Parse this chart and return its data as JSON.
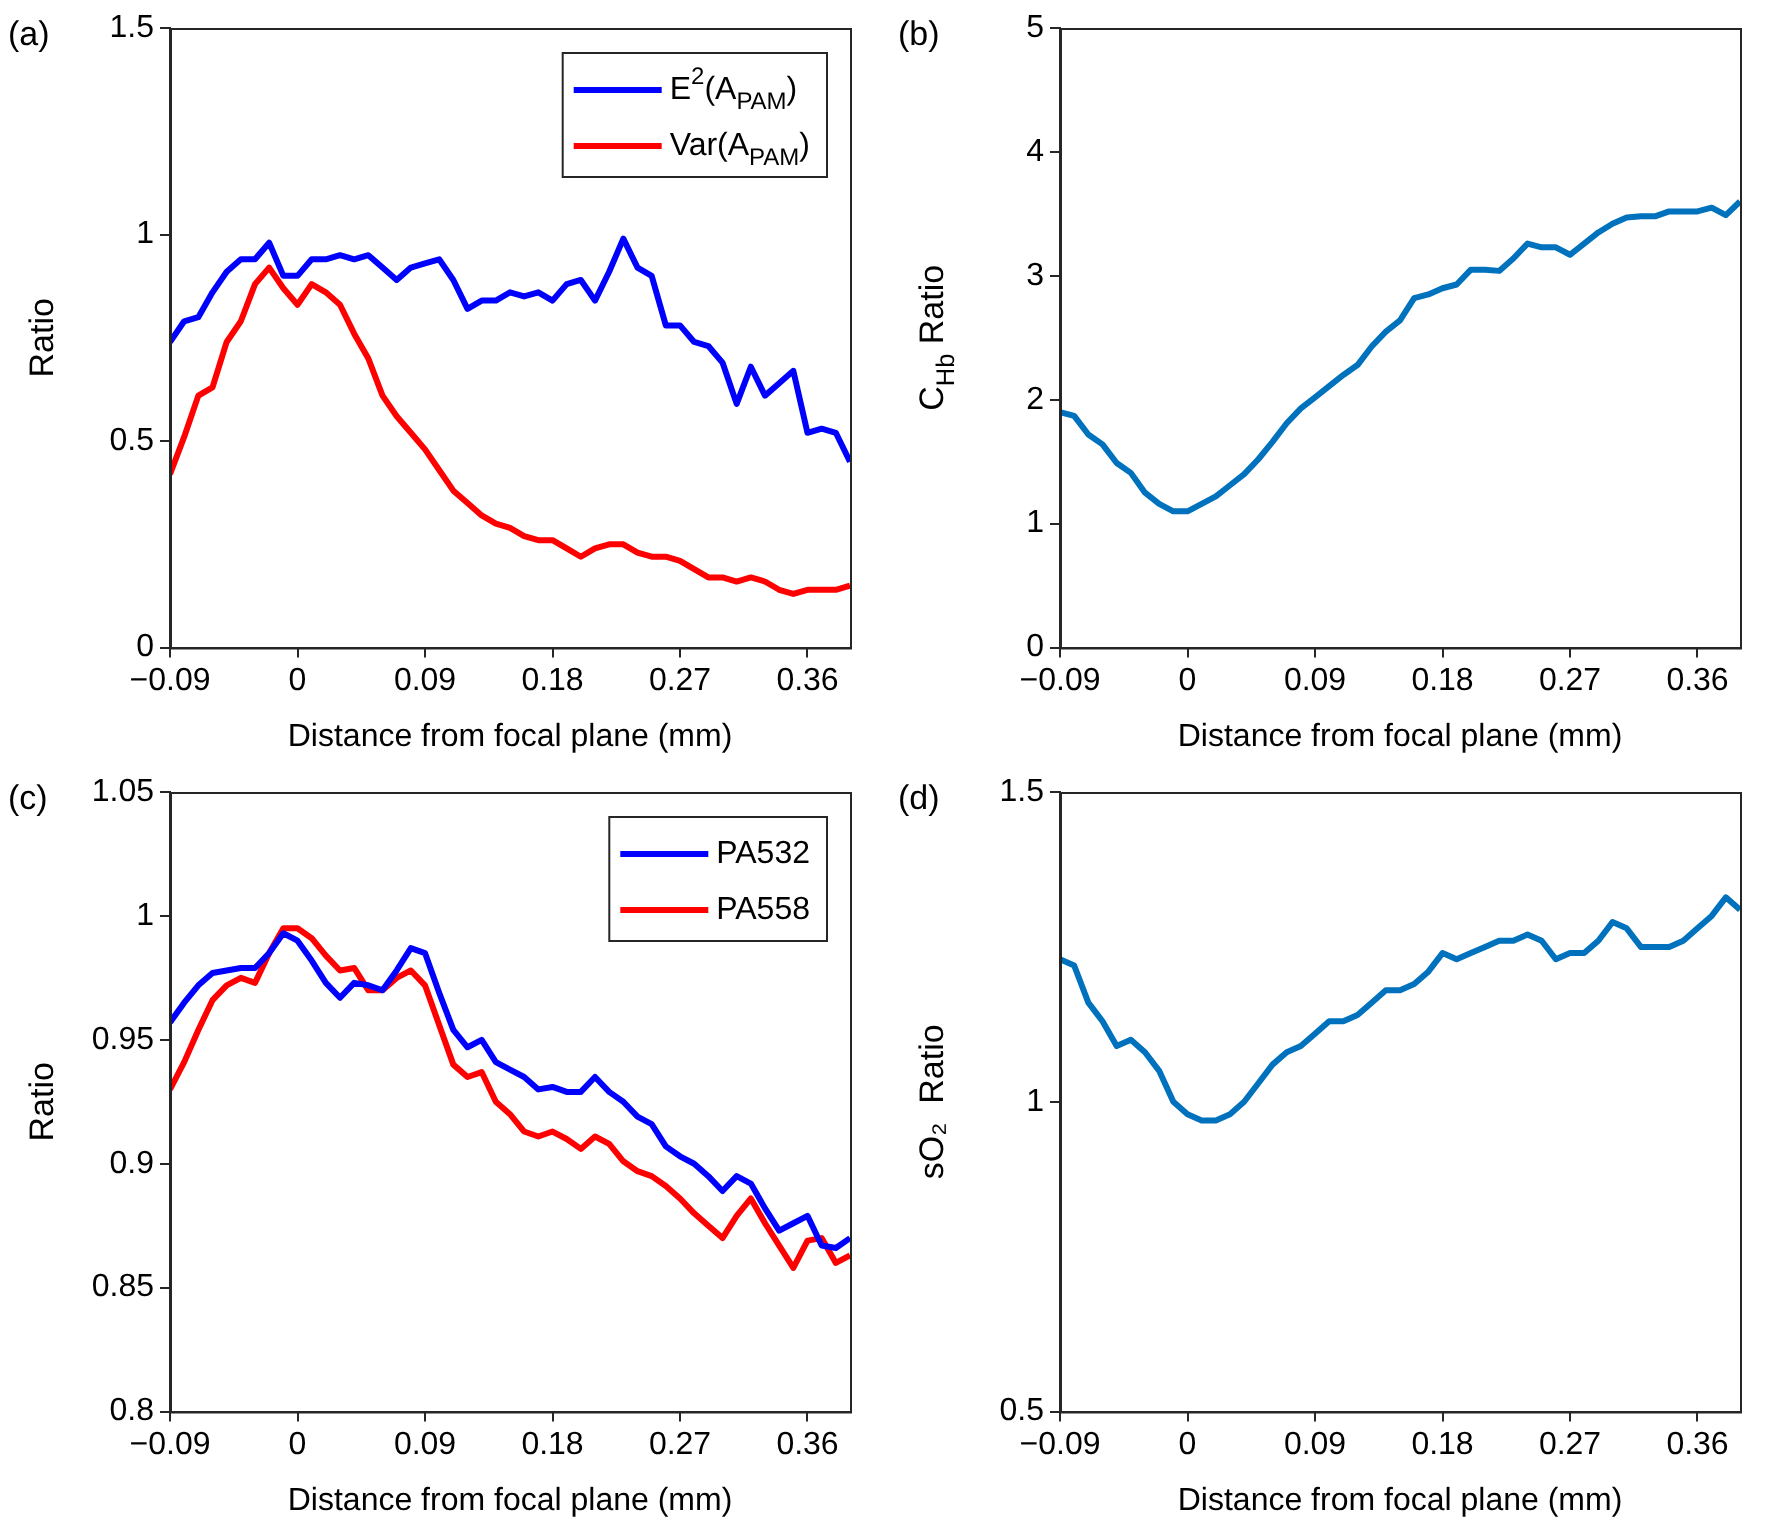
{
  "chart_data": [
    {
      "type": "line",
      "title": "(a)",
      "xlabel": "Distance from focal plane (mm)",
      "ylabel": "Ratio",
      "legend": "top right",
      "x": [
        -0.09,
        -0.08,
        -0.07,
        -0.06,
        -0.05,
        -0.04,
        -0.03,
        -0.02,
        -0.01,
        0,
        0.01,
        0.02,
        0.03,
        0.04,
        0.05,
        0.06,
        0.07,
        0.08,
        0.09,
        0.1,
        0.11,
        0.12,
        0.13,
        0.14,
        0.15,
        0.16,
        0.17,
        0.18,
        0.19,
        0.2,
        0.21,
        0.22,
        0.23,
        0.24,
        0.25,
        0.26,
        0.27,
        0.28,
        0.29,
        0.3,
        0.31,
        0.32,
        0.33,
        0.34,
        0.35,
        0.36,
        0.37,
        0.38,
        0.39
      ],
      "xlim": [
        -0.09,
        0.39
      ],
      "xticks": [
        -0.09,
        0,
        0.09,
        0.18,
        0.27,
        0.36
      ],
      "ylim": [
        0,
        1.5
      ],
      "yticks": [
        0,
        0.5,
        1,
        1.5
      ],
      "series": [
        {
          "name": "E$^{2}$(A$_{PAM}$)",
          "color": "#0000ff",
          "values": [
            0.74,
            0.79,
            0.8,
            0.86,
            0.91,
            0.94,
            0.94,
            0.98,
            0.9,
            0.9,
            0.94,
            0.94,
            0.95,
            0.94,
            0.95,
            0.92,
            0.89,
            0.92,
            0.93,
            0.94,
            0.89,
            0.82,
            0.84,
            0.84,
            0.86,
            0.85,
            0.86,
            0.84,
            0.88,
            0.89,
            0.84,
            0.91,
            0.99,
            0.92,
            0.9,
            0.78,
            0.78,
            0.74,
            0.73,
            0.69,
            0.59,
            0.68,
            0.61,
            0.64,
            0.67,
            0.52,
            0.53,
            0.52,
            0.45
          ]
        },
        {
          "name": "Var(A$_{PAM}$)",
          "color": "#ff0000",
          "values": [
            0.42,
            0.51,
            0.61,
            0.63,
            0.74,
            0.79,
            0.88,
            0.92,
            0.87,
            0.83,
            0.88,
            0.86,
            0.83,
            0.76,
            0.7,
            0.61,
            0.56,
            0.52,
            0.48,
            0.43,
            0.38,
            0.35,
            0.32,
            0.3,
            0.29,
            0.27,
            0.26,
            0.26,
            0.24,
            0.22,
            0.24,
            0.25,
            0.25,
            0.23,
            0.22,
            0.22,
            0.21,
            0.19,
            0.17,
            0.17,
            0.16,
            0.17,
            0.16,
            0.14,
            0.13,
            0.14,
            0.14,
            0.14,
            0.15
          ]
        }
      ]
    },
    {
      "type": "line",
      "title": "(b)",
      "xlabel": "Distance from focal plane (mm)",
      "ylabel": "C$_{Hb}$ Ratio",
      "x": [
        -0.09,
        -0.08,
        -0.07,
        -0.06,
        -0.05,
        -0.04,
        -0.03,
        -0.02,
        -0.01,
        0,
        0.01,
        0.02,
        0.03,
        0.04,
        0.05,
        0.06,
        0.07,
        0.08,
        0.09,
        0.1,
        0.11,
        0.12,
        0.13,
        0.14,
        0.15,
        0.16,
        0.17,
        0.18,
        0.19,
        0.2,
        0.21,
        0.22,
        0.23,
        0.24,
        0.25,
        0.26,
        0.27,
        0.28,
        0.29,
        0.3,
        0.31,
        0.32,
        0.33,
        0.34,
        0.35,
        0.36,
        0.37,
        0.38,
        0.39
      ],
      "xlim": [
        -0.09,
        0.39
      ],
      "xticks": [
        -0.09,
        0,
        0.09,
        0.18,
        0.27,
        0.36
      ],
      "ylim": [
        0,
        5
      ],
      "yticks": [
        0,
        1,
        2,
        3,
        4,
        5
      ],
      "series": [
        {
          "color": "#0072bd",
          "values": [
            1.9,
            1.87,
            1.72,
            1.64,
            1.49,
            1.41,
            1.25,
            1.16,
            1.1,
            1.1,
            1.16,
            1.22,
            1.31,
            1.4,
            1.52,
            1.66,
            1.81,
            1.93,
            2.02,
            2.11,
            2.2,
            2.28,
            2.43,
            2.55,
            2.64,
            2.82,
            2.85,
            2.9,
            2.93,
            3.05,
            3.05,
            3.04,
            3.14,
            3.26,
            3.23,
            3.23,
            3.17,
            3.26,
            3.35,
            3.42,
            3.47,
            3.48,
            3.48,
            3.52,
            3.52,
            3.52,
            3.55,
            3.49,
            3.6
          ]
        }
      ]
    },
    {
      "type": "line",
      "title": "(c)",
      "xlabel": "Distance from focal plane (mm)",
      "ylabel": "Ratio",
      "legend": "top right",
      "x": [
        -0.09,
        -0.08,
        -0.07,
        -0.06,
        -0.05,
        -0.04,
        -0.03,
        -0.02,
        -0.01,
        0,
        0.01,
        0.02,
        0.03,
        0.04,
        0.05,
        0.06,
        0.07,
        0.08,
        0.09,
        0.1,
        0.11,
        0.12,
        0.13,
        0.14,
        0.15,
        0.16,
        0.17,
        0.18,
        0.19,
        0.2,
        0.21,
        0.22,
        0.23,
        0.24,
        0.25,
        0.26,
        0.27,
        0.28,
        0.29,
        0.3,
        0.31,
        0.32,
        0.33,
        0.34,
        0.35,
        0.36,
        0.37,
        0.38,
        0.39
      ],
      "xlim": [
        -0.09,
        0.39
      ],
      "xticks": [
        -0.09,
        0,
        0.09,
        0.18,
        0.27,
        0.36
      ],
      "ylim": [
        0.8,
        1.05
      ],
      "yticks": [
        0.8,
        0.85,
        0.9,
        0.95,
        1,
        1.05
      ],
      "series": [
        {
          "name": "PA532",
          "color": "#0000ff",
          "values": [
            0.957,
            0.965,
            0.972,
            0.977,
            0.978,
            0.979,
            0.979,
            0.985,
            0.993,
            0.99,
            0.982,
            0.973,
            0.967,
            0.973,
            0.972,
            0.97,
            0.978,
            0.987,
            0.985,
            0.969,
            0.954,
            0.947,
            0.95,
            0.941,
            0.938,
            0.935,
            0.93,
            0.931,
            0.929,
            0.929,
            0.935,
            0.929,
            0.925,
            0.919,
            0.916,
            0.907,
            0.903,
            0.9,
            0.895,
            0.889,
            0.895,
            0.892,
            0.882,
            0.873,
            0.876,
            0.879,
            0.867,
            0.866,
            0.87
          ]
        },
        {
          "name": "PA558",
          "color": "#ff0000",
          "values": [
            0.93,
            0.941,
            0.954,
            0.966,
            0.972,
            0.975,
            0.973,
            0.985,
            0.995,
            0.995,
            0.991,
            0.984,
            0.978,
            0.979,
            0.97,
            0.97,
            0.975,
            0.978,
            0.972,
            0.956,
            0.94,
            0.935,
            0.937,
            0.925,
            0.92,
            0.913,
            0.911,
            0.913,
            0.91,
            0.906,
            0.911,
            0.908,
            0.901,
            0.897,
            0.895,
            0.891,
            0.886,
            0.88,
            0.875,
            0.87,
            0.879,
            0.886,
            0.876,
            0.867,
            0.858,
            0.869,
            0.87,
            0.86,
            0.863
          ]
        }
      ]
    },
    {
      "type": "line",
      "title": "(d)",
      "xlabel": "Distance from focal plane (mm)",
      "ylabel": "sO₂  Ratio",
      "x": [
        -0.09,
        -0.08,
        -0.07,
        -0.06,
        -0.05,
        -0.04,
        -0.03,
        -0.02,
        -0.01,
        0,
        0.01,
        0.02,
        0.03,
        0.04,
        0.05,
        0.06,
        0.07,
        0.08,
        0.09,
        0.1,
        0.11,
        0.12,
        0.13,
        0.14,
        0.15,
        0.16,
        0.17,
        0.18,
        0.19,
        0.2,
        0.21,
        0.22,
        0.23,
        0.24,
        0.25,
        0.26,
        0.27,
        0.28,
        0.29,
        0.3,
        0.31,
        0.32,
        0.33,
        0.34,
        0.35,
        0.36,
        0.37,
        0.38,
        0.39
      ],
      "xlim": [
        -0.09,
        0.39
      ],
      "xticks": [
        -0.09,
        0,
        0.09,
        0.18,
        0.27,
        0.36
      ],
      "ylim": [
        0.5,
        1.5
      ],
      "yticks": [
        0.5,
        1,
        1.5
      ],
      "series": [
        {
          "color": "#0072bd",
          "values": [
            1.23,
            1.22,
            1.16,
            1.13,
            1.09,
            1.1,
            1.08,
            1.05,
            1.0,
            0.98,
            0.97,
            0.97,
            0.98,
            1.0,
            1.03,
            1.06,
            1.08,
            1.09,
            1.11,
            1.13,
            1.13,
            1.14,
            1.16,
            1.18,
            1.18,
            1.19,
            1.21,
            1.24,
            1.23,
            1.24,
            1.25,
            1.26,
            1.26,
            1.27,
            1.26,
            1.23,
            1.24,
            1.24,
            1.26,
            1.29,
            1.28,
            1.25,
            1.25,
            1.25,
            1.26,
            1.28,
            1.3,
            1.33,
            1.31
          ]
        }
      ]
    }
  ]
}
